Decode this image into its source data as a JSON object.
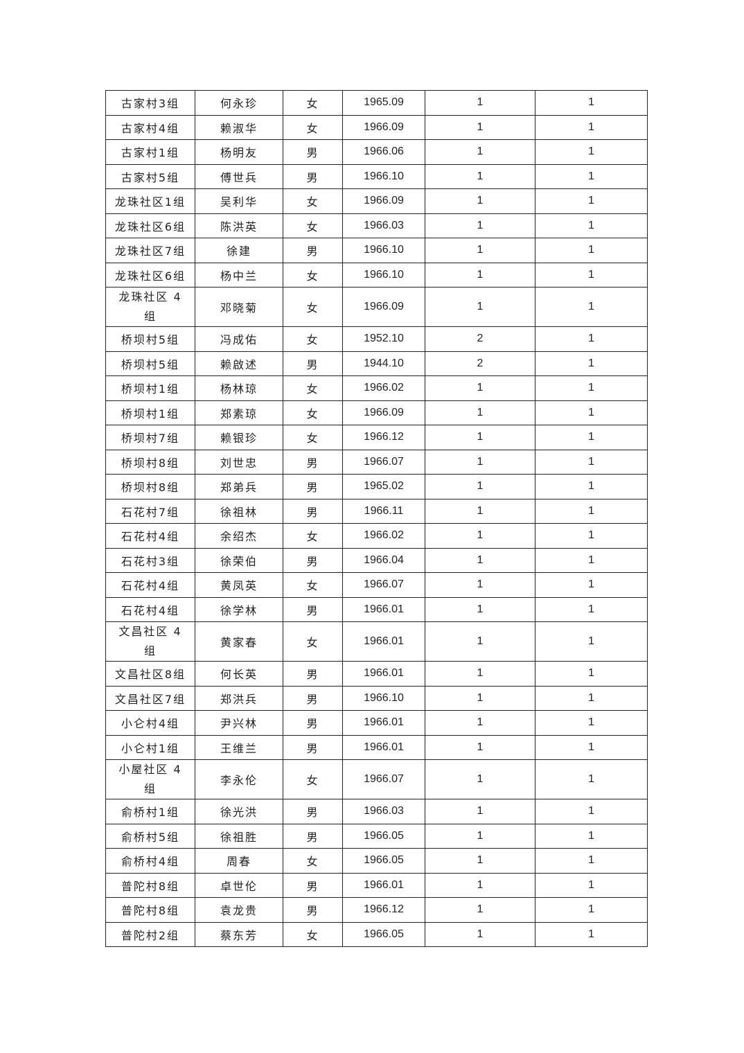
{
  "rows": [
    {
      "place": "古家村3组",
      "name": "何永珍",
      "gender": "女",
      "date": "1965.09",
      "c1": "1",
      "c2": "1"
    },
    {
      "place": "古家村4组",
      "name": "赖淑华",
      "gender": "女",
      "date": "1966.09",
      "c1": "1",
      "c2": "1"
    },
    {
      "place": "古家村1组",
      "name": "杨明友",
      "gender": "男",
      "date": "1966.06",
      "c1": "1",
      "c2": "1"
    },
    {
      "place": "古家村5组",
      "name": "傅世兵",
      "gender": "男",
      "date": "1966.10",
      "c1": "1",
      "c2": "1"
    },
    {
      "place": "龙珠社区1组",
      "name": "吴利华",
      "gender": "女",
      "date": "1966.09",
      "c1": "1",
      "c2": "1"
    },
    {
      "place": "龙珠社区6组",
      "name": "陈洪英",
      "gender": "女",
      "date": "1966.03",
      "c1": "1",
      "c2": "1"
    },
    {
      "place": "龙珠社区7组",
      "name": "徐建",
      "gender": "男",
      "date": "1966.10",
      "c1": "1",
      "c2": "1"
    },
    {
      "place": "龙珠社区6组",
      "name": "杨中兰",
      "gender": "女",
      "date": "1966.10",
      "c1": "1",
      "c2": "1"
    },
    {
      "place": "龙珠社区 4 组",
      "name": "邓晓菊",
      "gender": "女",
      "date": "1966.09",
      "c1": "1",
      "c2": "1",
      "tall": true
    },
    {
      "place": "桥坝村5组",
      "name": "冯成佑",
      "gender": "女",
      "date": "1952.10",
      "c1": "2",
      "c2": "1"
    },
    {
      "place": "桥坝村5组",
      "name": "赖啟述",
      "gender": "男",
      "date": "1944.10",
      "c1": "2",
      "c2": "1"
    },
    {
      "place": "桥坝村1组",
      "name": "杨林琼",
      "gender": "女",
      "date": "1966.02",
      "c1": "1",
      "c2": "1"
    },
    {
      "place": "桥坝村1组",
      "name": "郑素琼",
      "gender": "女",
      "date": "1966.09",
      "c1": "1",
      "c2": "1"
    },
    {
      "place": "桥坝村7组",
      "name": "赖银珍",
      "gender": "女",
      "date": "1966.12",
      "c1": "1",
      "c2": "1"
    },
    {
      "place": "桥坝村8组",
      "name": "刘世忠",
      "gender": "男",
      "date": "1966.07",
      "c1": "1",
      "c2": "1"
    },
    {
      "place": "桥坝村8组",
      "name": "郑弟兵",
      "gender": "男",
      "date": "1965.02",
      "c1": "1",
      "c2": "1"
    },
    {
      "place": "石花村7组",
      "name": "徐祖林",
      "gender": "男",
      "date": "1966.11",
      "c1": "1",
      "c2": "1"
    },
    {
      "place": "石花村4组",
      "name": "余绍杰",
      "gender": "女",
      "date": "1966.02",
      "c1": "1",
      "c2": "1"
    },
    {
      "place": "石花村3组",
      "name": "徐荣伯",
      "gender": "男",
      "date": "1966.04",
      "c1": "1",
      "c2": "1"
    },
    {
      "place": "石花村4组",
      "name": "黄凤英",
      "gender": "女",
      "date": "1966.07",
      "c1": "1",
      "c2": "1"
    },
    {
      "place": "石花村4组",
      "name": "徐学林",
      "gender": "男",
      "date": "1966.01",
      "c1": "1",
      "c2": "1"
    },
    {
      "place": "文昌社区 4 组",
      "name": "黄家春",
      "gender": "女",
      "date": "1966.01",
      "c1": "1",
      "c2": "1",
      "tall": true
    },
    {
      "place": "文昌社区8组",
      "name": "何长英",
      "gender": "男",
      "date": "1966.01",
      "c1": "1",
      "c2": "1"
    },
    {
      "place": "文昌社区7组",
      "name": "郑洪兵",
      "gender": "男",
      "date": "1966.10",
      "c1": "1",
      "c2": "1"
    },
    {
      "place": "小仑村4组",
      "name": "尹兴林",
      "gender": "男",
      "date": "1966.01",
      "c1": "1",
      "c2": "1"
    },
    {
      "place": "小仑村1组",
      "name": "王维兰",
      "gender": "男",
      "date": "1966.01",
      "c1": "1",
      "c2": "1"
    },
    {
      "place": "小屋社区 4 组",
      "name": "李永伦",
      "gender": "女",
      "date": "1966.07",
      "c1": "1",
      "c2": "1",
      "tall": true
    },
    {
      "place": "俞桥村1组",
      "name": "徐光洪",
      "gender": "男",
      "date": "1966.03",
      "c1": "1",
      "c2": "1"
    },
    {
      "place": "俞桥村5组",
      "name": "徐祖胜",
      "gender": "男",
      "date": "1966.05",
      "c1": "1",
      "c2": "1"
    },
    {
      "place": "俞桥村4组",
      "name": "周春",
      "gender": "女",
      "date": "1966.05",
      "c1": "1",
      "c2": "1"
    },
    {
      "place": "普陀村8组",
      "name": "卓世伦",
      "gender": "男",
      "date": "1966.01",
      "c1": "1",
      "c2": "1"
    },
    {
      "place": "普陀村8组",
      "name": "袁龙贵",
      "gender": "男",
      "date": "1966.12",
      "c1": "1",
      "c2": "1"
    },
    {
      "place": "普陀村2组",
      "name": "蔡东芳",
      "gender": "女",
      "date": "1966.05",
      "c1": "1",
      "c2": "1"
    }
  ]
}
